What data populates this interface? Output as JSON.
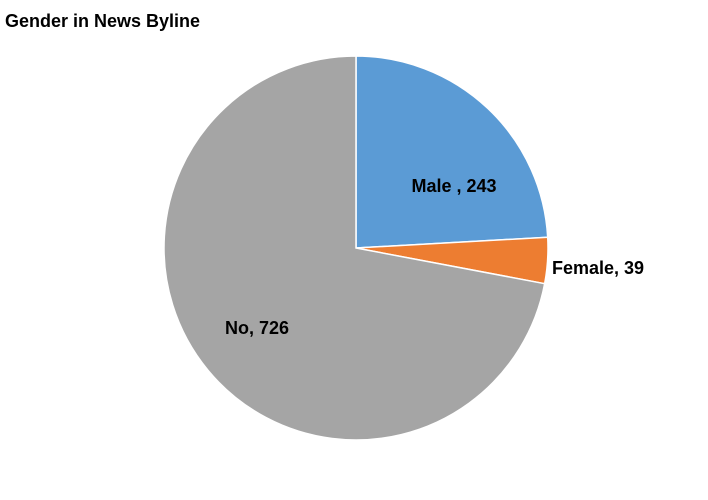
{
  "chart_data": {
    "type": "pie",
    "title": "Gender in News Byline",
    "slices": [
      {
        "label": "Male",
        "value": 243,
        "display": "Male , 243",
        "color": "#5b9bd5"
      },
      {
        "label": "Female",
        "value": 39,
        "display": "Female, 39",
        "color": "#ed7d31"
      },
      {
        "label": "No",
        "value": 726,
        "display": "No, 726",
        "color": "#a5a5a5"
      }
    ],
    "start_angle_deg": 0,
    "direction": "clockwise",
    "legend": "none"
  }
}
